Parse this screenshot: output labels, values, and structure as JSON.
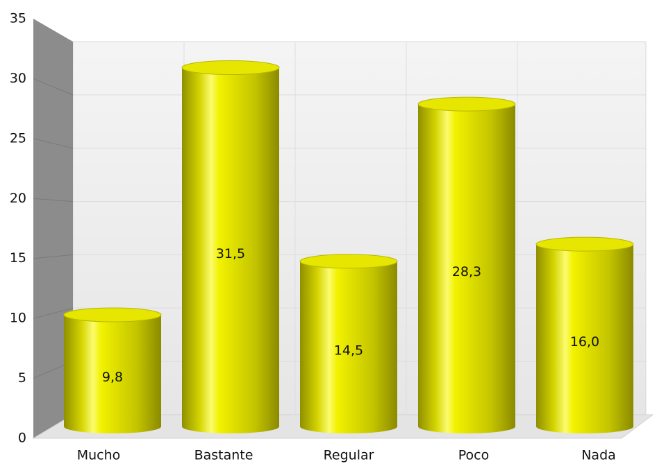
{
  "chart_data": {
    "type": "bar",
    "categories": [
      "Mucho",
      "Bastante",
      "Regular",
      "Poco",
      "Nada"
    ],
    "values": [
      9.8,
      31.5,
      14.5,
      28.3,
      16.0
    ],
    "value_labels": [
      "9,8",
      "31,5",
      "14,5",
      "28,3",
      "16,0"
    ],
    "color": "#e6e600",
    "ylim": [
      0,
      35
    ],
    "yticks": [
      0,
      5,
      10,
      15,
      20,
      25,
      30,
      35
    ],
    "grid": true
  }
}
